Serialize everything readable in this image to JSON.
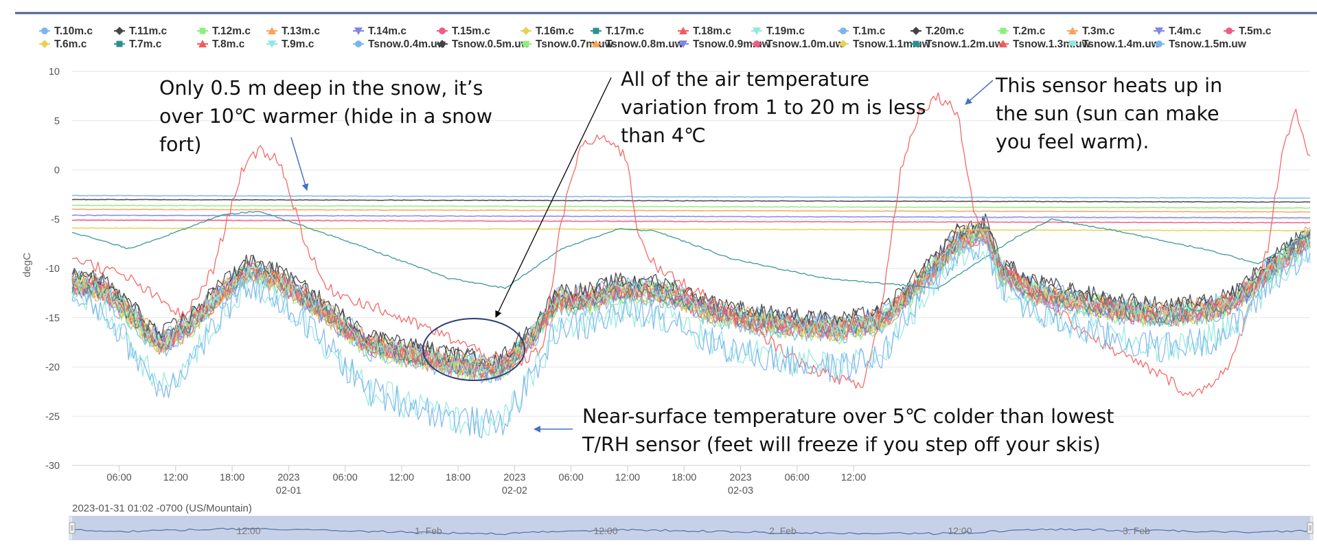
{
  "chart_data": {
    "type": "line",
    "title": "",
    "xlabel": "",
    "ylabel": "degC",
    "ylim": [
      -30,
      10
    ],
    "y_ticks": [
      -30,
      -25,
      -20,
      -15,
      -10,
      -5,
      0,
      5,
      10
    ],
    "x_range_hours": [
      0,
      131.5
    ],
    "x_ticks": [
      {
        "h": 5,
        "label": "06:00",
        "sub": ""
      },
      {
        "h": 11,
        "label": "12:00",
        "sub": ""
      },
      {
        "h": 17,
        "label": "18:00",
        "sub": ""
      },
      {
        "h": 23,
        "label": "2023",
        "sub": "02-01"
      },
      {
        "h": 29,
        "label": "06:00",
        "sub": ""
      },
      {
        "h": 35,
        "label": "12:00",
        "sub": ""
      },
      {
        "h": 41,
        "label": "18:00",
        "sub": ""
      },
      {
        "h": 47,
        "label": "2023",
        "sub": "02-02"
      },
      {
        "h": 53,
        "label": "06:00",
        "sub": ""
      },
      {
        "h": 59,
        "label": "12:00",
        "sub": ""
      },
      {
        "h": 65,
        "label": "18:00",
        "sub": ""
      },
      {
        "h": 71,
        "label": "2023",
        "sub": "02-03"
      },
      {
        "h": 77,
        "label": "06:00",
        "sub": ""
      },
      {
        "h": 83,
        "label": "12:00",
        "sub": ""
      }
    ],
    "grid": true,
    "legend_position": "top",
    "series": [
      {
        "name": "T.10m.c",
        "color": "#7cb5ec",
        "marker": "circle",
        "kind": "air",
        "level": -11.2
      },
      {
        "name": "T.11m.c",
        "color": "#434348",
        "marker": "diamond",
        "kind": "air",
        "level": -11.0
      },
      {
        "name": "T.12m.c",
        "color": "#90ed7d",
        "marker": "square",
        "kind": "air",
        "level": -11.4
      },
      {
        "name": "T.13m.c",
        "color": "#f7a35c",
        "marker": "triangle",
        "kind": "air",
        "level": -11.3
      },
      {
        "name": "T.14m.c",
        "color": "#8085e9",
        "marker": "triangle-down",
        "kind": "air",
        "level": -11.5
      },
      {
        "name": "T.15m.c",
        "color": "#f15c80",
        "marker": "circle",
        "kind": "air",
        "level": -11.6
      },
      {
        "name": "T.16m.c",
        "color": "#e4d354",
        "marker": "diamond",
        "kind": "air",
        "level": -11.7
      },
      {
        "name": "T.17m.c",
        "color": "#2b908f",
        "marker": "square",
        "kind": "air",
        "level": -11.8
      },
      {
        "name": "T.18m.c",
        "color": "#f45b5b",
        "marker": "triangle",
        "kind": "air",
        "level": -11.9
      },
      {
        "name": "T.19m.c",
        "color": "#91e8e1",
        "marker": "triangle-down",
        "kind": "air",
        "level": -12.0
      },
      {
        "name": "T.1m.c",
        "color": "#7cb5ec",
        "marker": "circle",
        "kind": "air",
        "level": -12.3
      },
      {
        "name": "T.20m.c",
        "color": "#434348",
        "marker": "diamond",
        "kind": "air",
        "level": -10.9
      },
      {
        "name": "T.2m.c",
        "color": "#90ed7d",
        "marker": "square",
        "kind": "air",
        "level": -12.2
      },
      {
        "name": "T.3m.c",
        "color": "#f7a35c",
        "marker": "triangle",
        "kind": "air",
        "level": -12.1
      },
      {
        "name": "T.4m.c",
        "color": "#8085e9",
        "marker": "triangle-down",
        "kind": "air",
        "level": -12.0
      },
      {
        "name": "T.5m.c",
        "color": "#f15c80",
        "marker": "circle",
        "kind": "air",
        "level": -11.9
      },
      {
        "name": "T.6m.c",
        "color": "#e4d354",
        "marker": "diamond",
        "kind": "air",
        "level": -11.8
      },
      {
        "name": "T.7m.c",
        "color": "#2b908f",
        "marker": "square",
        "kind": "air",
        "level": -11.7
      },
      {
        "name": "T.8m.c",
        "color": "#f45b5b",
        "marker": "triangle",
        "kind": "air",
        "level": -11.6
      },
      {
        "name": "T.9m.c",
        "color": "#91e8e1",
        "marker": "triangle-down",
        "kind": "air",
        "level": -11.5
      },
      {
        "name": "Tsnow.0.4m.uw",
        "color": "#7cb5ec",
        "marker": "circle",
        "kind": "snow",
        "level": -2.6
      },
      {
        "name": "Tsnow.0.5m.uw",
        "color": "#434348",
        "marker": "diamond",
        "kind": "snow",
        "level": -3.0
      },
      {
        "name": "Tsnow.0.7m.uw",
        "color": "#90ed7d",
        "marker": "square",
        "kind": "snow",
        "level": -3.6
      },
      {
        "name": "Tsnow.0.8m.uw",
        "color": "#f7a35c",
        "marker": "triangle",
        "kind": "snow",
        "level": -4.0
      },
      {
        "name": "Tsnow.0.9m.uw",
        "color": "#8085e9",
        "marker": "triangle-down",
        "kind": "snow",
        "level": -4.6
      },
      {
        "name": "Tsnow.1.0m.uw",
        "color": "#f15c80",
        "marker": "circle",
        "kind": "snow",
        "level": -5.1
      },
      {
        "name": "Tsnow.1.1m.uw",
        "color": "#e4d354",
        "marker": "diamond",
        "kind": "snow",
        "level": -5.9
      },
      {
        "name": "Tsnow.1.2m.uw",
        "color": "#2b908f",
        "marker": "square",
        "kind": "snow_deep",
        "level": -6.3
      },
      {
        "name": "Tsnow.1.3m.uw",
        "color": "#f45b5b",
        "marker": "triangle",
        "kind": "sun",
        "level": -8.8
      },
      {
        "name": "Tsnow.1.4m.uw",
        "color": "#91e8e1",
        "marker": "triangle-down",
        "kind": "surface",
        "level": -12.2
      },
      {
        "name": "Tsnow.1.5m.uw",
        "color": "#7cb5ec",
        "marker": "circle",
        "kind": "surface",
        "level": -12.0
      }
    ],
    "annotations": [
      {
        "lines": [
          "Only 0.5 m deep in the snow, it’s",
          "over 10℃ warmer (hide in a snow",
          "fort)"
        ]
      },
      {
        "lines": [
          "All of the air temperature",
          "variation from 1 to 20 m is less",
          "than 4℃"
        ]
      },
      {
        "lines": [
          "This sensor heats up in",
          "the sun (sun can make",
          "you feel warm)."
        ]
      },
      {
        "lines": [
          "Near-surface temperature over 5℃ colder than lowest",
          "T/RH sensor (feet will freeze if you step off your skis)"
        ]
      }
    ]
  },
  "footer": {
    "timestamp": "2023-01-31 01:02 -0700 (US/Mountain)"
  },
  "navigator": {
    "labels": [
      "12:00",
      "1. Feb",
      "12:00",
      "2. Feb",
      "12:00",
      "3. Feb"
    ]
  }
}
